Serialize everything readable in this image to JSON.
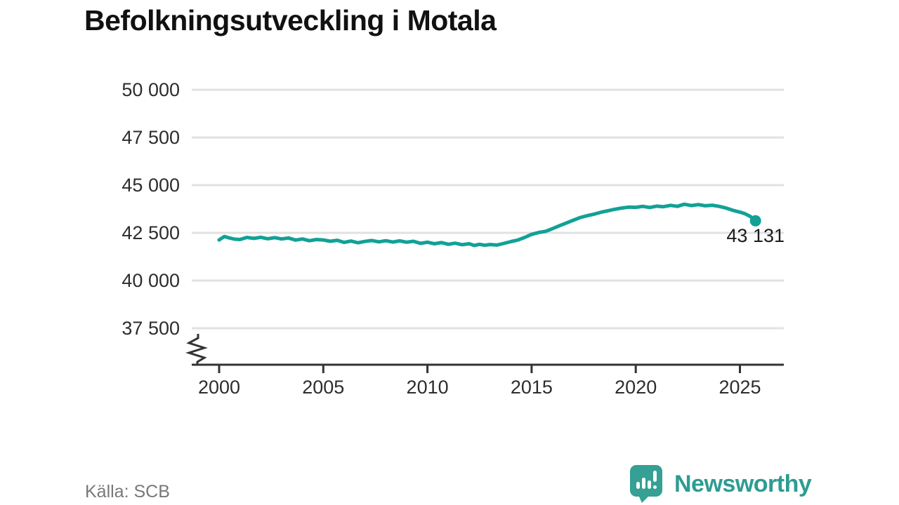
{
  "chart": {
    "title": "Befolkningsutveckling i Motala"
  },
  "chart_data": {
    "type": "line",
    "title": "Befolkningsutveckling i Motala",
    "xlabel": "",
    "ylabel": "",
    "legend": "none",
    "grid": "horizontal-only",
    "y_axis_break": true,
    "xlim": [
      1998.7,
      2027.2
    ],
    "ylim": [
      37500,
      50000
    ],
    "x_ticks": [
      2000,
      2005,
      2010,
      2015,
      2020,
      2025
    ],
    "y_ticks": [
      {
        "value": 50000,
        "label": "50 000"
      },
      {
        "value": 47500,
        "label": "47 500"
      },
      {
        "value": 45000,
        "label": "45 000"
      },
      {
        "value": 42500,
        "label": "42 500"
      },
      {
        "value": 40000,
        "label": "40 000"
      },
      {
        "value": 37500,
        "label": "37 500"
      }
    ],
    "series": [
      {
        "points": [
          [
            2000.0,
            42130
          ],
          [
            2000.25,
            42310
          ],
          [
            2000.5,
            42230
          ],
          [
            2000.75,
            42170
          ],
          [
            2001.0,
            42150
          ],
          [
            2001.33,
            42260
          ],
          [
            2001.67,
            42210
          ],
          [
            2002.0,
            42270
          ],
          [
            2002.33,
            42190
          ],
          [
            2002.67,
            42250
          ],
          [
            2003.0,
            42180
          ],
          [
            2003.33,
            42230
          ],
          [
            2003.67,
            42120
          ],
          [
            2004.0,
            42180
          ],
          [
            2004.33,
            42090
          ],
          [
            2004.67,
            42150
          ],
          [
            2005.0,
            42130
          ],
          [
            2005.33,
            42060
          ],
          [
            2005.67,
            42110
          ],
          [
            2006.0,
            42000
          ],
          [
            2006.33,
            42070
          ],
          [
            2006.67,
            41980
          ],
          [
            2007.0,
            42050
          ],
          [
            2007.33,
            42100
          ],
          [
            2007.67,
            42030
          ],
          [
            2008.0,
            42090
          ],
          [
            2008.33,
            42020
          ],
          [
            2008.67,
            42080
          ],
          [
            2009.0,
            42010
          ],
          [
            2009.33,
            42060
          ],
          [
            2009.67,
            41950
          ],
          [
            2010.0,
            42010
          ],
          [
            2010.33,
            41930
          ],
          [
            2010.67,
            41990
          ],
          [
            2011.0,
            41900
          ],
          [
            2011.33,
            41960
          ],
          [
            2011.67,
            41880
          ],
          [
            2012.0,
            41930
          ],
          [
            2012.25,
            41840
          ],
          [
            2012.5,
            41900
          ],
          [
            2012.75,
            41850
          ],
          [
            2013.0,
            41890
          ],
          [
            2013.33,
            41860
          ],
          [
            2013.67,
            41950
          ],
          [
            2014.0,
            42040
          ],
          [
            2014.33,
            42120
          ],
          [
            2014.67,
            42260
          ],
          [
            2015.0,
            42420
          ],
          [
            2015.33,
            42520
          ],
          [
            2015.67,
            42580
          ],
          [
            2016.0,
            42720
          ],
          [
            2016.33,
            42870
          ],
          [
            2016.67,
            43020
          ],
          [
            2017.0,
            43160
          ],
          [
            2017.33,
            43300
          ],
          [
            2017.67,
            43400
          ],
          [
            2018.0,
            43480
          ],
          [
            2018.33,
            43580
          ],
          [
            2018.67,
            43660
          ],
          [
            2019.0,
            43740
          ],
          [
            2019.33,
            43800
          ],
          [
            2019.67,
            43850
          ],
          [
            2020.0,
            43840
          ],
          [
            2020.33,
            43890
          ],
          [
            2020.67,
            43830
          ],
          [
            2021.0,
            43900
          ],
          [
            2021.33,
            43870
          ],
          [
            2021.67,
            43940
          ],
          [
            2022.0,
            43890
          ],
          [
            2022.33,
            44000
          ],
          [
            2022.67,
            43930
          ],
          [
            2023.0,
            43980
          ],
          [
            2023.33,
            43920
          ],
          [
            2023.67,
            43950
          ],
          [
            2024.0,
            43890
          ],
          [
            2024.33,
            43800
          ],
          [
            2024.67,
            43680
          ],
          [
            2025.0,
            43590
          ],
          [
            2025.25,
            43500
          ],
          [
            2025.5,
            43360
          ],
          [
            2025.75,
            43131
          ]
        ]
      }
    ],
    "end_point": {
      "x": 2025.75,
      "y": 43131,
      "label": "43 131"
    }
  },
  "footer": {
    "source": "Källa: SCB",
    "brand": "Newsworthy"
  },
  "colors": {
    "line": "#12a196",
    "axis": "#333333",
    "grid": "#e1e1e1",
    "tick_label": "#2d2d2d",
    "title": "#111111",
    "source_text": "#787878",
    "brand_teal": "#2d9c92",
    "logo_bubble": "#35a093"
  }
}
